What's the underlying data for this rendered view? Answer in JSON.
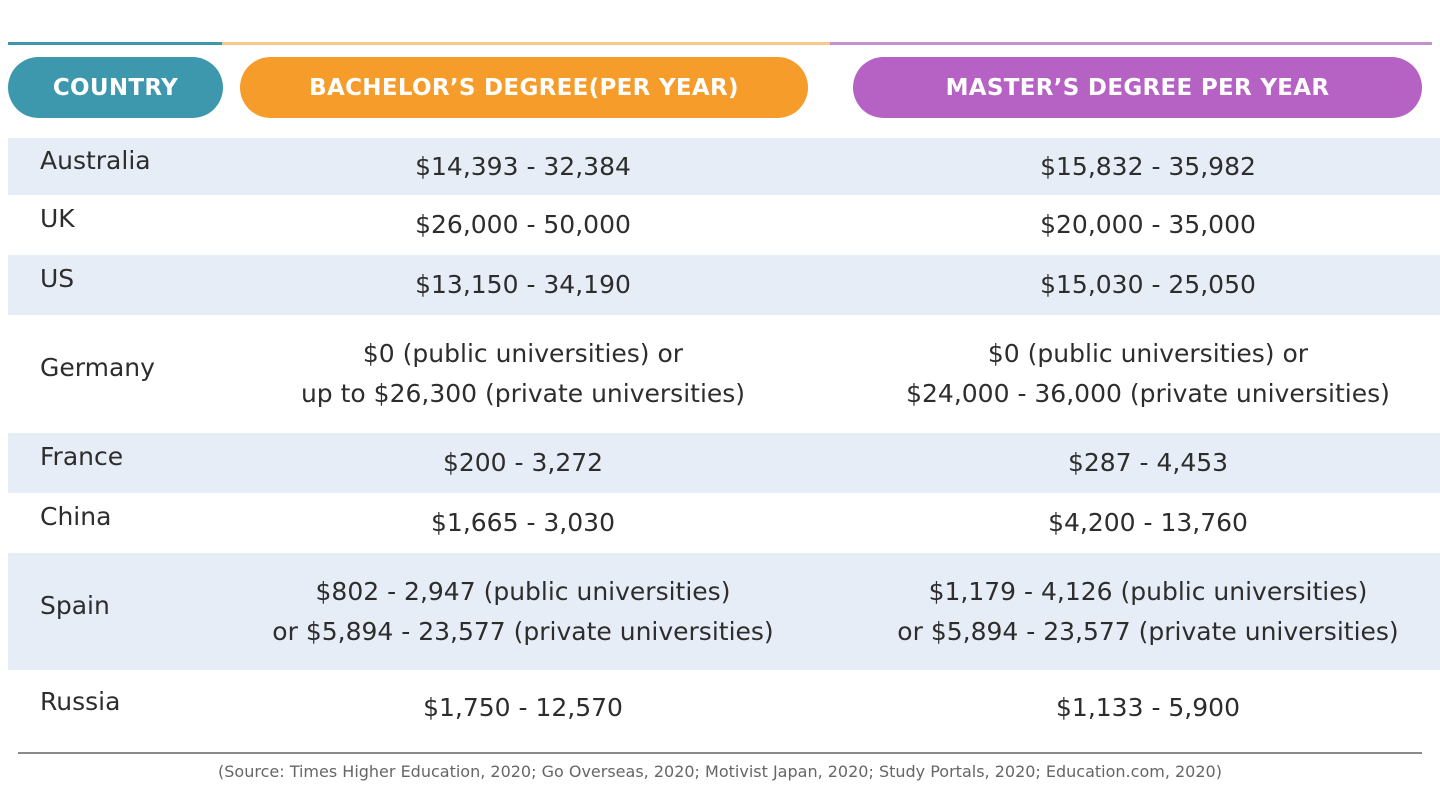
{
  "colors": {
    "country": "#3d97ad",
    "bachelor": "#f59c2a",
    "master": "#b562c4",
    "row_shade": "#e7edf6"
  },
  "headers": {
    "country": "COUNTRY",
    "bachelor": "BACHELOR’S DEGREE(PER YEAR)",
    "master": "MASTER’S DEGREE PER YEAR"
  },
  "rows": [
    {
      "country": "Australia",
      "bachelor": "$14,393 - 32,384",
      "master": "$15,832 - 35,982"
    },
    {
      "country": "UK",
      "bachelor": "$26,000 - 50,000",
      "master": "$20,000 - 35,000"
    },
    {
      "country": "US",
      "bachelor": "$13,150 - 34,190",
      "master": "$15,030 - 25,050"
    },
    {
      "country": "Germany",
      "bachelor": "$0 (public universities) or\nup to $26,300 (private universities)",
      "master": "$0 (public universities) or\n$24,000 - 36,000 (private universities)"
    },
    {
      "country": "France",
      "bachelor": "$200 - 3,272",
      "master": "$287 - 4,453"
    },
    {
      "country": "China",
      "bachelor": "$1,665 - 3,030",
      "master": "$4,200 - 13,760"
    },
    {
      "country": "Spain",
      "bachelor": "$802 - 2,947 (public universities)\nor $5,894 - 23,577 (private universities)",
      "master": "$1,179 - 4,126 (public universities)\nor $5,894 - 23,577 (private universities)"
    },
    {
      "country": "Russia",
      "bachelor": "$1,750 - 12,570",
      "master": "$1,133 - 5,900"
    }
  ],
  "source": "(Source: Times Higher Education, 2020; Go Overseas, 2020; Motivist Japan, 2020; Study Portals, 2020; Education.com, 2020)"
}
